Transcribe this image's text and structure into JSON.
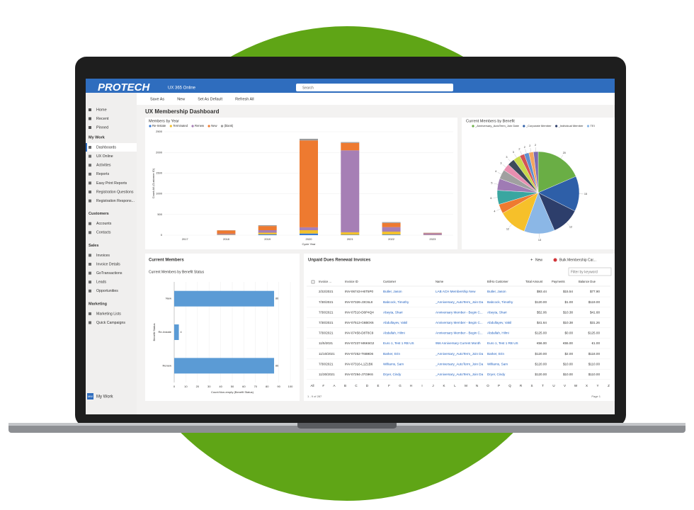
{
  "app": {
    "logo": "PROTECH",
    "name": "UX 365 Online",
    "search": "Search"
  },
  "command_bar": [
    "Save As",
    "New",
    "Set As Default",
    "Refresh All"
  ],
  "nav": {
    "top": [
      "Home",
      "Recent",
      "Pinned"
    ],
    "sections": [
      {
        "title": "My Work",
        "items": [
          "Dashboards",
          "UX Online",
          "Activities",
          "Reports",
          "Easy Print Reports",
          "Registration Questions",
          "Registration Respons..."
        ]
      },
      {
        "title": "Customers",
        "items": [
          "Accounts",
          "Contacts"
        ]
      },
      {
        "title": "Sales",
        "items": [
          "Invoices",
          "Invoice Details",
          "GoTransactions",
          "Leads",
          "Opportunities"
        ]
      },
      {
        "title": "Marketing",
        "items": [
          "Marketing Lists",
          "Quick Campaigns"
        ]
      }
    ],
    "footer": {
      "badge": "MW",
      "label": "My Work"
    }
  },
  "dashboard_title": "UX Membership Dashboard",
  "panel_current_members": "Current Members",
  "chart_data": [
    {
      "type": "bar",
      "stacked": true,
      "title": "Members by Year",
      "x_label": "Cycle Year",
      "y_label": "Count:All (Customer ID)",
      "categories": [
        "2017",
        "2018",
        "2019",
        "2020",
        "2021",
        "2022",
        "2023"
      ],
      "series": [
        {
          "name": "Re-Instate",
          "color": "#3a7bd5",
          "values": [
            0,
            5,
            20,
            40,
            10,
            15,
            0
          ]
        },
        {
          "name": "Terminated",
          "color": "#f2c12e",
          "values": [
            0,
            10,
            40,
            80,
            60,
            70,
            5
          ]
        },
        {
          "name": "Renew",
          "color": "#a67fb5",
          "values": [
            0,
            20,
            60,
            70,
            1980,
            110,
            40
          ]
        },
        {
          "name": "New",
          "color": "#ee7a30",
          "values": [
            0,
            80,
            100,
            2100,
            180,
            100,
            10
          ]
        },
        {
          "name": "(blank)",
          "color": "#9a9a9a",
          "values": [
            0,
            5,
            20,
            40,
            20,
            20,
            5
          ]
        }
      ],
      "ylim": [
        0,
        2500
      ],
      "yticks": [
        0,
        500,
        1000,
        1500,
        2000,
        2500
      ],
      "grid": true
    },
    {
      "type": "pie",
      "title": "Current Members by Benefit",
      "categories": [
        "_Anniversary_AutoTerm_Join Date",
        "_Corporate Member",
        "_Individual Member",
        "TEI",
        null,
        null,
        null,
        null,
        null,
        null,
        null,
        null,
        null,
        null,
        null,
        null
      ],
      "values": [
        20,
        15,
        12,
        13,
        12,
        4,
        6,
        5,
        4,
        3,
        3,
        3,
        2,
        2,
        2,
        2
      ],
      "colors": [
        "#6aae45",
        "#2e5fa8",
        "#2d3e6b",
        "#8bb7e6",
        "#f6c02a",
        "#ee7a30",
        "#3aa6a0",
        "#9f7bb4",
        "#a0a0a0",
        "#e88fb0",
        "#3b4a5a",
        "#c8d94a",
        "#d45454",
        "#5f8fd0",
        "#f3a65f",
        "#7c6bb0"
      ]
    },
    {
      "type": "hbar",
      "title": "Current Members by Benefit Status",
      "x_label": "Count:Non-empty (Benefit Status)",
      "y_label": "Benefit Status",
      "categories": [
        "New",
        "Re-Instate",
        "Renew"
      ],
      "values": [
        86,
        4,
        86
      ],
      "color": "#5b9bd5",
      "xlim": [
        0,
        100
      ],
      "xticks": [
        0,
        10,
        20,
        30,
        40,
        50,
        60,
        70,
        80,
        90,
        100
      ],
      "grid": true
    }
  ],
  "table": {
    "title": "Unpaid Dues Renewal Invoices",
    "actions": [
      "New",
      "Bulk Membership Car..."
    ],
    "filter": "Filter by keyword",
    "columns": [
      "Invoice ...",
      "Invoice ID",
      "Customer",
      "Name",
      "Bill-to Customer",
      "Total Amount",
      "Payments",
      "Balance Due"
    ],
    "rows": [
      [
        "2/22/2021",
        "INV-06743-H6T5P0",
        "Butler, Jason",
        "LAB ACH Membership New",
        "Butler, Jason",
        "$93.44",
        "$15.54",
        "$77.90"
      ],
      [
        "7/30/2021",
        "INV-07326-J3C6L8",
        "Babcock, Timothy",
        "_Anniversary_AutoTerm_Join Da",
        "Babcock, Timothy",
        "$120.00",
        "$1.00",
        "$119.00"
      ],
      [
        "7/30/2021",
        "INV-07510-D6P4Q4",
        "Abeyta, Shari",
        "Anniversary Member - Begin C...",
        "Abeyta, Shari",
        "$52.06",
        "$10.38",
        "$41.68"
      ],
      [
        "7/30/2021",
        "INV-07513-G6B0X6",
        "Abdullayev, Vakil",
        "Anniversary Member - Begin C...",
        "Abdullayev, Vakil",
        "$41.64",
        "$10.38",
        "$31.26"
      ],
      [
        "7/30/2021",
        "INV-07458-D8T8C9",
        "Abdallah, Hilmi",
        "Anniversary Member - Begin C...",
        "Abdallah, Hilmi",
        "$125.00",
        "$0.00",
        "$125.00"
      ],
      [
        "11/5/2021",
        "INV-07237-M6K6G2",
        "Euro 1, Test 1 RB US",
        "956 Anniversary Current Month",
        "Euro 1, Test 1 RB US",
        "€56.00",
        "€55.00",
        "€1.00"
      ],
      [
        "11/10/2021",
        "INV-07252-T6B9D6",
        "Barker, Erin",
        "_Anniversary_AutoTerm_Join Da",
        "Barker, Erin",
        "$120.00",
        "$2.00",
        "$118.00"
      ],
      [
        "7/30/2021",
        "INV-07316-L1Z1B6",
        "Williams, Sam",
        "_Anniversary_AutoTerm_Join Da",
        "Williams, Sam",
        "$120.00",
        "$10.00",
        "$110.00"
      ],
      [
        "11/30/2021",
        "INV-07294-J7G9K6",
        "Dryer, Cindy",
        "_Anniversary_AutoTerm_Join Da",
        "Dryer, Cindy",
        "$120.00",
        "$10.00",
        "$110.00"
      ]
    ],
    "alphabet": [
      "All",
      "#",
      "A",
      "B",
      "C",
      "D",
      "E",
      "F",
      "G",
      "H",
      "I",
      "J",
      "K",
      "L",
      "M",
      "N",
      "O",
      "P",
      "Q",
      "R",
      "S",
      "T",
      "U",
      "V",
      "W",
      "X",
      "Y",
      "Z"
    ],
    "record_count": "1 - 9 of 287",
    "page": "Page 1"
  }
}
